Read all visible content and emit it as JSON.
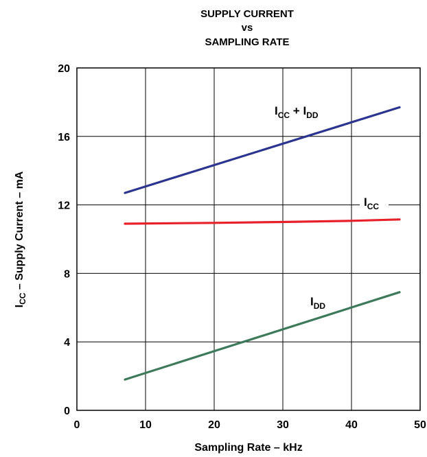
{
  "chart_data": {
    "type": "line",
    "title_lines": [
      "SUPPLY CURRENT",
      "vs",
      "SAMPLING RATE"
    ],
    "xlabel": "Sampling Rate – kHz",
    "ylabel": {
      "main": "I",
      "sub": "CC",
      "rest": " – Supply Current – mA"
    },
    "xlim": [
      0,
      50
    ],
    "ylim": [
      0,
      20
    ],
    "x_ticks": [
      0,
      10,
      20,
      30,
      40,
      50
    ],
    "y_ticks": [
      0,
      4,
      8,
      12,
      16,
      20
    ],
    "grid": true,
    "colors": {
      "icc_idd": "#2b3590",
      "icc": "#e8202a",
      "idd": "#3d7a5a"
    },
    "series": [
      {
        "key": "icc_idd",
        "label": {
          "p1": "I",
          "s1": "CC",
          "p2": " + I",
          "s2": "DD"
        },
        "x": [
          7,
          47
        ],
        "y": [
          12.7,
          17.7
        ]
      },
      {
        "key": "icc",
        "label": {
          "p1": "I",
          "s1": "CC"
        },
        "x": [
          7,
          20,
          30,
          40,
          47
        ],
        "y": [
          10.9,
          10.95,
          11.0,
          11.07,
          11.15
        ]
      },
      {
        "key": "idd",
        "label": {
          "p1": "I",
          "s1": "DD"
        },
        "x": [
          7,
          47
        ],
        "y": [
          1.8,
          6.9
        ]
      }
    ]
  }
}
